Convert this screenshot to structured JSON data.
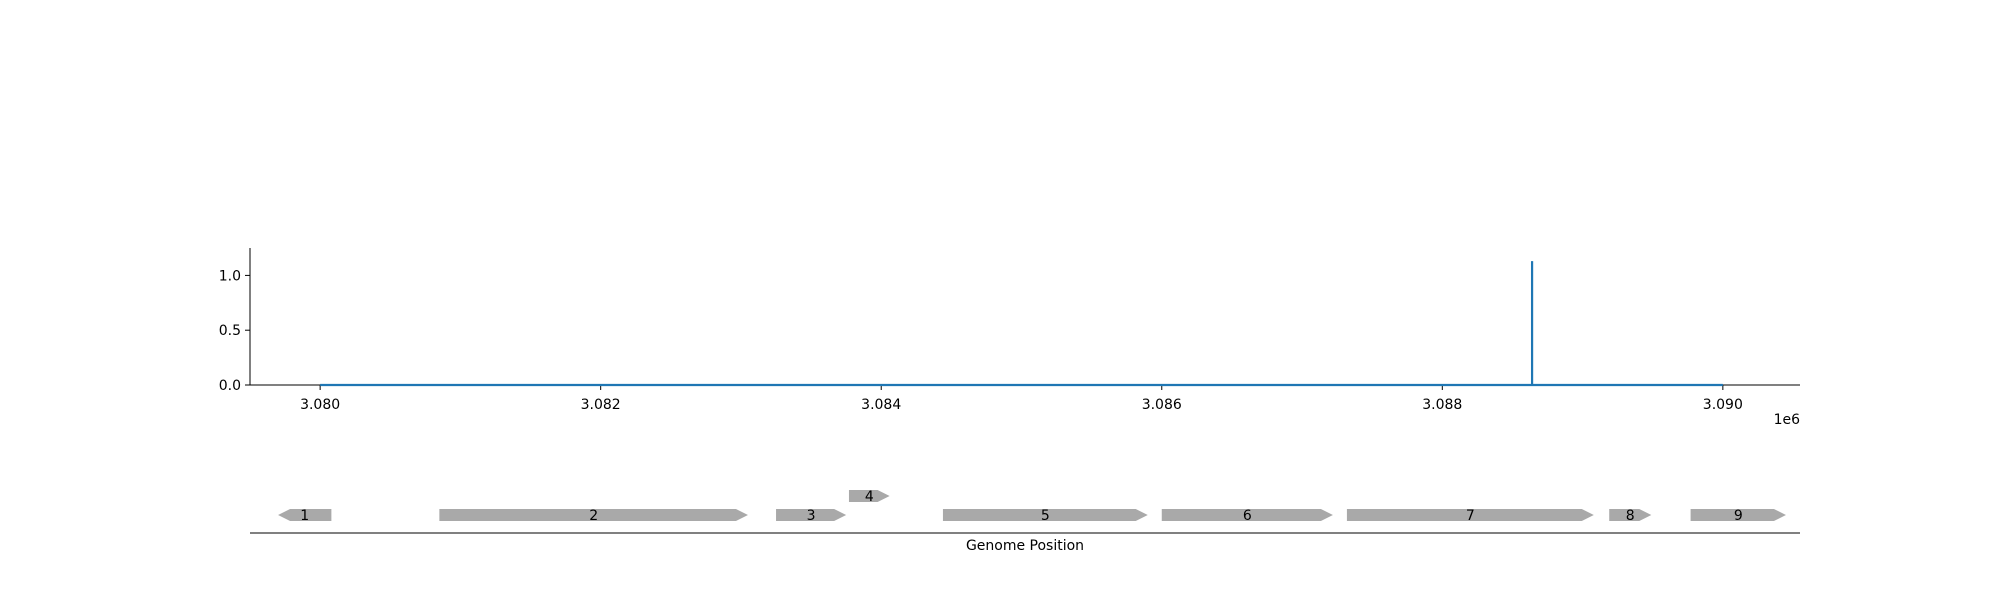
{
  "chart_data": [
    {
      "type": "line",
      "title": "",
      "xlabel": "",
      "ylabel": "",
      "x_offset_label": "1e6",
      "xlim": [
        3079500,
        3090550
      ],
      "ylim": [
        0,
        1.25
      ],
      "xticks": [
        3080000,
        3082000,
        3084000,
        3086000,
        3088000,
        3090000
      ],
      "xtick_labels": [
        "3.080",
        "3.082",
        "3.084",
        "3.086",
        "3.088",
        "3.090"
      ],
      "yticks": [
        0.0,
        0.5,
        1.0
      ],
      "ytick_labels": [
        "0.0",
        "0.5",
        "1.0"
      ],
      "grid": false,
      "series": [
        {
          "color": "#1f77b4",
          "x": [
            3080000,
            3088640,
            3088640,
            3088640,
            3090000
          ],
          "y": [
            0,
            0,
            1.13,
            0,
            0
          ]
        }
      ]
    },
    {
      "type": "gene-track",
      "xlabel": "Genome Position",
      "xlim": [
        3079500,
        3090550
      ],
      "grid": false,
      "genes": [
        {
          "label": "1",
          "start": 3079700,
          "end": 3080080,
          "strand": "-",
          "row": 0
        },
        {
          "label": "2",
          "start": 3080850,
          "end": 3083050,
          "strand": "+",
          "row": 0
        },
        {
          "label": "3",
          "start": 3083250,
          "end": 3083750,
          "strand": "+",
          "row": 0
        },
        {
          "label": "4",
          "start": 3083770,
          "end": 3084060,
          "strand": "+",
          "row": 1
        },
        {
          "label": "5",
          "start": 3084440,
          "end": 3085900,
          "strand": "+",
          "row": 0
        },
        {
          "label": "6",
          "start": 3086000,
          "end": 3087220,
          "strand": "+",
          "row": 0
        },
        {
          "label": "7",
          "start": 3087320,
          "end": 3089080,
          "strand": "+",
          "row": 0
        },
        {
          "label": "8",
          "start": 3089190,
          "end": 3089490,
          "strand": "+",
          "row": 0
        },
        {
          "label": "9",
          "start": 3089770,
          "end": 3090450,
          "strand": "+",
          "row": 0
        }
      ],
      "gene_color": "#a9a9a9"
    }
  ]
}
